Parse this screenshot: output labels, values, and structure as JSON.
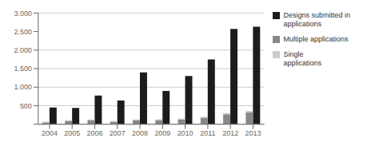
{
  "chart_data": {
    "type": "bar",
    "categories": [
      "2004",
      "2005",
      "2006",
      "2007",
      "2008",
      "2009",
      "2010",
      "2011",
      "2012",
      "2013"
    ],
    "series": [
      {
        "name": "Designs submitted in\napplications",
        "color": "#1c1c1c",
        "values": [
          450,
          440,
          775,
          640,
          1400,
          900,
          1300,
          1750,
          2570,
          2630
        ]
      },
      {
        "name": "Multiple applications",
        "color": "#888888",
        "stacked": true,
        "values": [
          50,
          80,
          110,
          70,
          110,
          115,
          130,
          175,
          270,
          320
        ]
      },
      {
        "name": "Single\napplications",
        "color": "#cccccc",
        "stacked": true,
        "values": [
          20,
          30,
          20,
          20,
          20,
          20,
          25,
          30,
          30,
          40
        ]
      }
    ],
    "ylim": [
      0,
      3000
    ],
    "yticks": [
      {
        "value": 0,
        "label": ""
      },
      500,
      {
        "value": 1000,
        "label": "1.000"
      },
      {
        "value": 1500,
        "label": "1.500"
      },
      {
        "value": 2000,
        "label": "2.000"
      },
      {
        "value": 2500,
        "label": "2.500"
      },
      {
        "value": 3000,
        "label": "3.000"
      }
    ],
    "grid": true,
    "legend": "right"
  }
}
